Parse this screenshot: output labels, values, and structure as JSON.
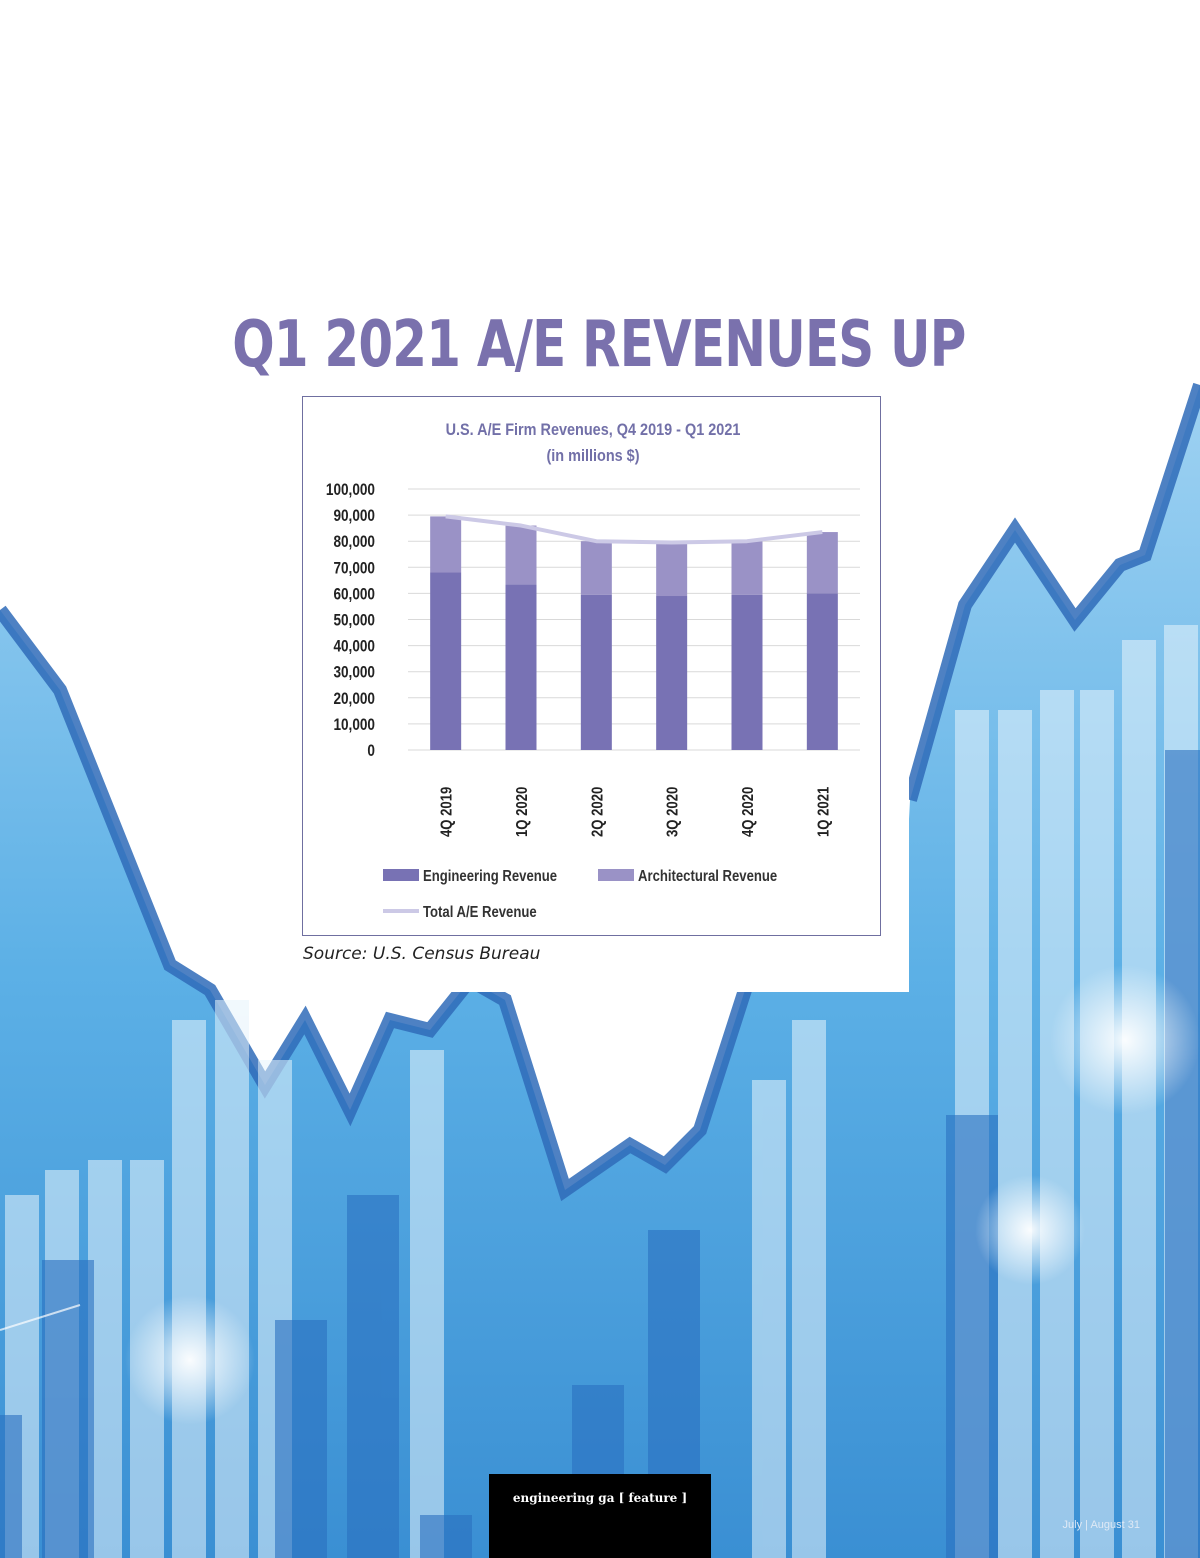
{
  "page": {
    "headline": "Q1 2021 A/E REVENUES UP",
    "source": "Source: U.S. Census Bureau",
    "footer_publication": "engineering ga  [ feature ]",
    "footer_date": "July | August  31"
  },
  "colors": {
    "headline": "#7a71ad",
    "engineering": "#7872b4",
    "architectural": "#9a92c6",
    "total_line": "#ccc9e6",
    "axis_text": "#222222",
    "title_text": "#7270a8",
    "background_blue": "#3f93d6"
  },
  "chart_data": {
    "type": "bar",
    "stacked": true,
    "title": "U.S. A/E Firm Revenues, Q4 2019 - Q1 2021",
    "subtitle": "(in millions $)",
    "categories": [
      "4Q 2019",
      "1Q 2020",
      "2Q 2020",
      "3Q 2020",
      "4Q 2020",
      "1Q 2021"
    ],
    "series": [
      {
        "name": "Engineering Revenue",
        "type": "bar",
        "values": [
          68000,
          63500,
          59500,
          59000,
          59500,
          60000
        ]
      },
      {
        "name": "Architectural Revenue",
        "type": "bar",
        "values": [
          21500,
          22500,
          20500,
          20500,
          20500,
          23500
        ]
      },
      {
        "name": "Total A/E Revenue",
        "type": "line",
        "values": [
          89500,
          86000,
          80000,
          79500,
          80000,
          83500
        ]
      }
    ],
    "ylim": [
      0,
      100000
    ],
    "yticks": [
      "0",
      "10,000",
      "20,000",
      "30,000",
      "40,000",
      "50,000",
      "60,000",
      "70,000",
      "80,000",
      "90,000",
      "100,000"
    ],
    "grid": true,
    "legend_position": "bottom"
  }
}
